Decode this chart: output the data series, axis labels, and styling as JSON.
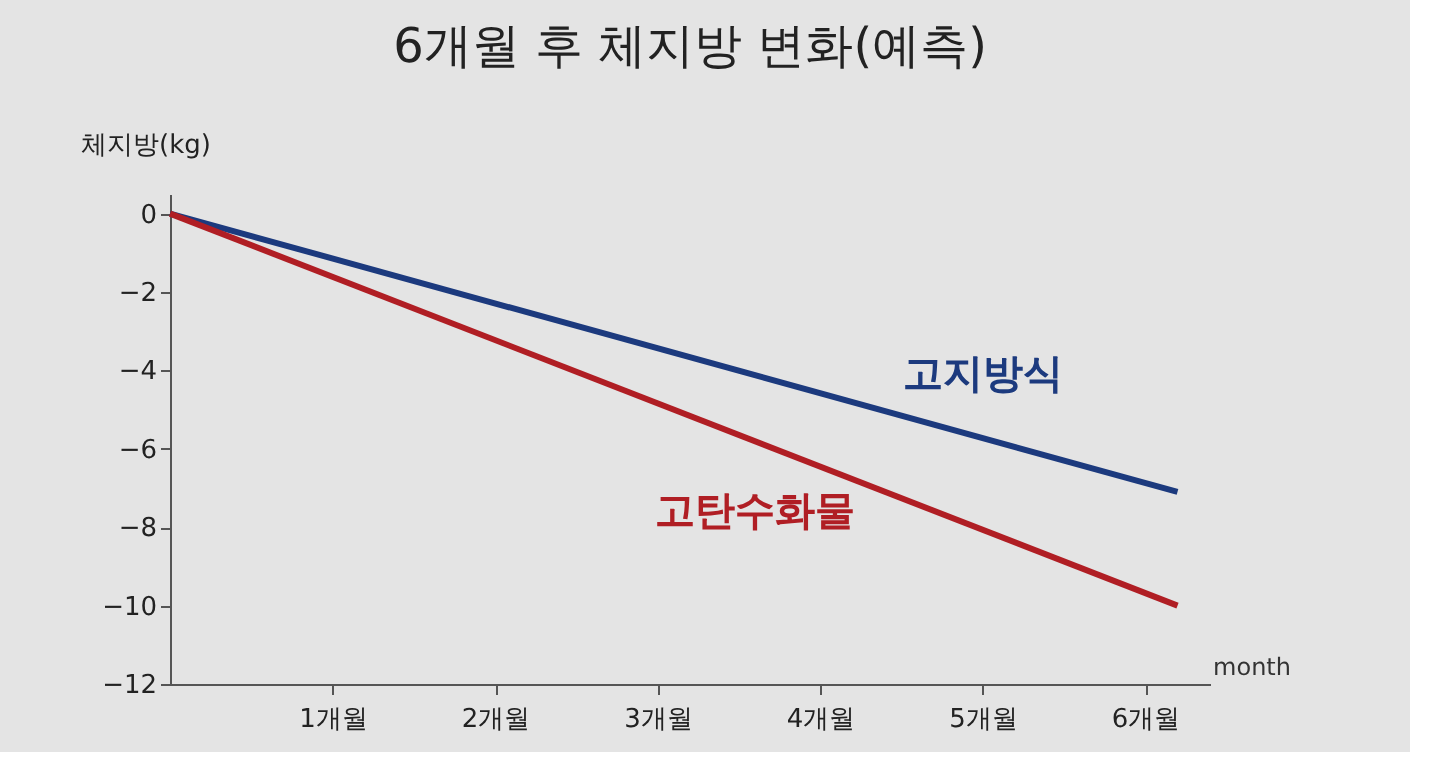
{
  "chart_data": {
    "type": "line",
    "title": "6개월 후 체지방 변화(예측)",
    "ylabel": "체지방(kg)",
    "xlabel": "month",
    "x": [
      0,
      6.2
    ],
    "series": [
      {
        "name": "고지방식",
        "color": "#1c3a7e",
        "values": [
          0,
          -7.1
        ]
      },
      {
        "name": "고탄수화물",
        "color": "#b01e24",
        "values": [
          0,
          -10
        ]
      }
    ],
    "xlim": [
      0,
      6.4
    ],
    "xticks": [
      {
        "value": 1,
        "label": "1개월"
      },
      {
        "value": 2,
        "label": "2개월"
      },
      {
        "value": 3,
        "label": "3개월"
      },
      {
        "value": 4,
        "label": "4개월"
      },
      {
        "value": 5,
        "label": "5개월"
      },
      {
        "value": 6,
        "label": "6개월"
      }
    ],
    "ylim": [
      -12,
      0.5
    ],
    "yticks": [
      0,
      -2,
      -4,
      -6,
      -8,
      -10,
      -12
    ],
    "grid": false,
    "legend": false,
    "marker": "none",
    "line_style": "solid"
  }
}
